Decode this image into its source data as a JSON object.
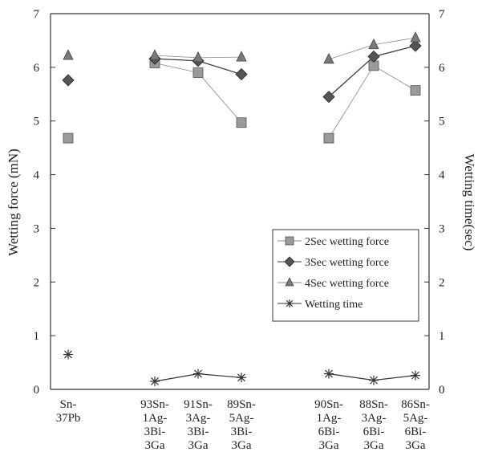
{
  "chart_data": {
    "type": "scatter",
    "title": "",
    "ylabel": "Wetting force (mN)",
    "y2label": "Wetting time(sec)",
    "ylim": [
      0,
      7
    ],
    "y2lim": [
      0,
      7
    ],
    "yticks": [
      0,
      1,
      2,
      3,
      4,
      5,
      6,
      7
    ],
    "grid": false,
    "legend_position": "lower-right",
    "categories": [
      [
        "Sn-",
        "37Pb"
      ],
      [
        "93Sn-",
        "1Ag-",
        "3Bi-",
        "3Ga"
      ],
      [
        "91Sn-",
        "3Ag-",
        "3Bi-",
        "3Ga"
      ],
      [
        "89Sn-",
        "5Ag-",
        "3Bi-",
        "3Ga"
      ],
      [
        "90Sn-",
        "1Ag-",
        "6Bi-",
        "3Ga"
      ],
      [
        "88Sn-",
        "3Ag-",
        "6Bi-",
        "3Ga"
      ],
      [
        "86Sn-",
        "5Ag-",
        "6Bi-",
        "3Ga"
      ]
    ],
    "line_groups": [
      [
        1,
        2,
        3
      ],
      [
        4,
        5,
        6
      ]
    ],
    "series": [
      {
        "name": "2Sec wetting force",
        "marker": "square",
        "color": "#9a9a9a",
        "line": "#888888",
        "values": [
          4.68,
          6.08,
          5.9,
          4.97,
          4.68,
          6.03,
          5.57
        ]
      },
      {
        "name": "3Sec wetting force",
        "marker": "diamond",
        "color": "#555555",
        "line": "#333333",
        "values": [
          5.76,
          6.16,
          6.12,
          5.87,
          5.45,
          6.2,
          6.4
        ]
      },
      {
        "name": "4Sec wetting force",
        "marker": "triangle",
        "color": "#7a7a7a",
        "line": "#888888",
        "values": [
          6.22,
          6.22,
          6.18,
          6.19,
          6.15,
          6.42,
          6.55
        ]
      },
      {
        "name": "Wetting time",
        "marker": "asterisk",
        "color": "#333333",
        "line": "#333333",
        "values": [
          0.65,
          0.15,
          0.29,
          0.22,
          0.29,
          0.17,
          0.26
        ]
      }
    ]
  }
}
